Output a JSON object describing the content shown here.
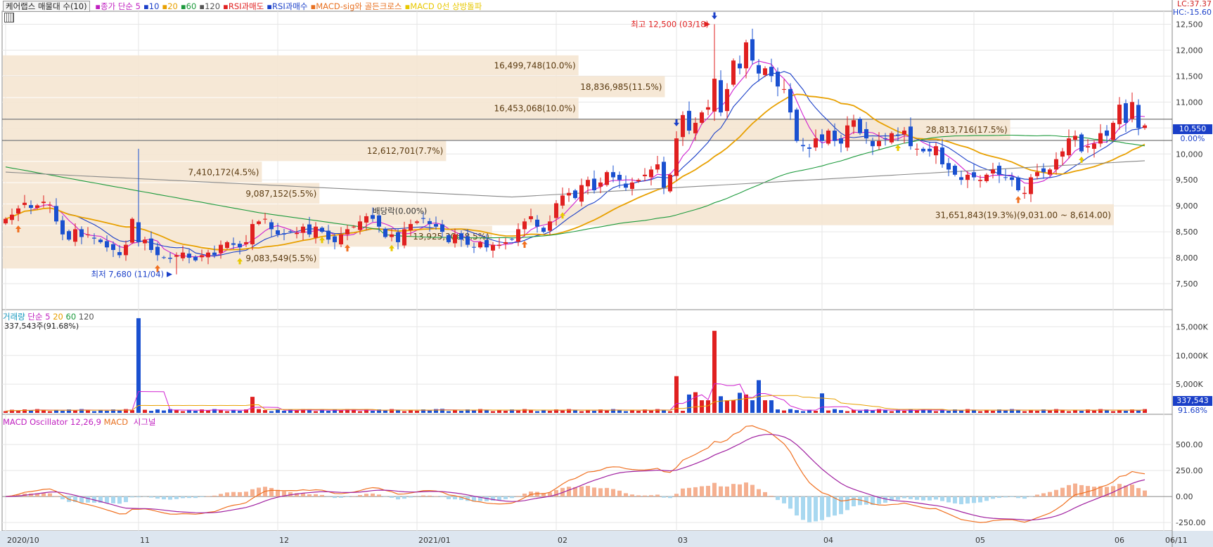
{
  "header": {
    "title": "케어랩스 매물대 수(10)",
    "indicators": [
      {
        "label": "종가 단순 5",
        "color": "#c020c0"
      },
      {
        "label": "10",
        "color": "#1a3fc8"
      },
      {
        "label": "20",
        "color": "#e8a000"
      },
      {
        "label": "60",
        "color": "#1c9a3c"
      },
      {
        "label": "120",
        "color": "#555555"
      },
      {
        "label": "RSI과매도",
        "color": "#e02020"
      },
      {
        "label": "RSI과매수",
        "color": "#1a3fc8"
      },
      {
        "label": "MACD-sig와 골든크로스",
        "color": "#e87020"
      },
      {
        "label": "MACD 0선 상방돌파",
        "color": "#e8c800"
      }
    ],
    "lc_label": "LC:37.37",
    "hc_label": "HC:-15.60"
  },
  "volume_panel": {
    "label_main": "거래량",
    "label_rest": "단순 5",
    "ma_labels": [
      "20",
      "60",
      "120"
    ],
    "sub_label": "337,543주(91.68%)",
    "current_tag": "337,543",
    "current_pct": "91.68%"
  },
  "macd_panel": {
    "label_osc": "MACD Oscillator 12,26,9",
    "label_macd": "MACD",
    "label_sig": "시그널"
  },
  "current_price_tag": "10,550",
  "current_pct_tag": "0.00%",
  "annotations": {
    "high": "최고 12,500 (03/18)",
    "low": "최저 7,680 (11/04)",
    "dividend": "배당락(0.00%)"
  },
  "chart_data": {
    "type": "candlestick",
    "price_axis": {
      "min": 7000,
      "max": 12750,
      "ticks": [
        "7,500",
        "8,000",
        "8,500",
        "9,000",
        "9,500",
        "10,000",
        "10,500",
        "11,000",
        "11,500",
        "12,000",
        "12,500"
      ],
      "tick_values": [
        7500,
        8000,
        8500,
        9000,
        9500,
        10000,
        10500,
        11000,
        11500,
        12000,
        12500
      ]
    },
    "x_labels": [
      {
        "label": "2020/10",
        "index": 0
      },
      {
        "label": "11",
        "index": 21
      },
      {
        "label": "12",
        "index": 43
      },
      {
        "label": "2021/01",
        "index": 65
      },
      {
        "label": "02",
        "index": 87
      },
      {
        "label": "03",
        "index": 106
      },
      {
        "label": "04",
        "index": 129
      },
      {
        "label": "05",
        "index": 153
      },
      {
        "label": "06",
        "index": 175
      },
      {
        "label": "06/11",
        "index": 183
      }
    ],
    "volume_profile": [
      {
        "label": "16,499,748(10.0%)",
        "lo": 11500,
        "hi": 11900
      },
      {
        "label": "18,836,985(11.5%)",
        "lo": 11080,
        "hi": 11500
      },
      {
        "label": "16,453,068(10.0%)",
        "lo": 10670,
        "hi": 11080
      },
      {
        "label": "28,813,716(17.5%)",
        "lo": 10260,
        "hi": 10670
      },
      {
        "label": "12,612,701(7.7%)",
        "lo": 9850,
        "hi": 10260
      },
      {
        "label": "7,410,172(4.5%)",
        "lo": 9440,
        "hi": 9850
      },
      {
        "label": "9,087,152(5.5%)",
        "lo": 9030,
        "hi": 9440
      },
      {
        "label": "31,651,843(19.3%)(9,031.00 ~ 8,614.00)",
        "lo": 8614,
        "hi": 9031
      },
      {
        "label": "13,925,306(8.5%)",
        "lo": 8200,
        "hi": 8614
      },
      {
        "label": "9,083,549(5.5%)",
        "lo": 7780,
        "hi": 8200
      }
    ],
    "closes": [
      8750,
      8830,
      8950,
      9060,
      8960,
      9010,
      9080,
      9020,
      8700,
      8450,
      8350,
      8550,
      8400,
      8450,
      8370,
      8300,
      8200,
      8150,
      8050,
      8250,
      8750,
      8300,
      8350,
      8150,
      8050,
      8000,
      7980,
      8050,
      8100,
      8000,
      7950,
      8050,
      8100,
      8050,
      8250,
      8300,
      8250,
      8200,
      8300,
      8650,
      8700,
      8750,
      8550,
      8450,
      8450,
      8500,
      8480,
      8600,
      8450,
      8600,
      8500,
      8350,
      8300,
      8450,
      8550,
      8600,
      8700,
      8800,
      8750,
      8600,
      8400,
      8450,
      8300,
      8550,
      8650,
      8700,
      8750,
      8650,
      8600,
      8500,
      8300,
      8450,
      8350,
      8250,
      8200,
      8300,
      8200,
      8250,
      8250,
      8300,
      8350,
      8550,
      8700,
      8800,
      8600,
      8500,
      8700,
      9050,
      9200,
      9250,
      9150,
      9400,
      9500,
      9300,
      9450,
      9650,
      9550,
      9500,
      9350,
      9450,
      9500,
      9600,
      9700,
      9800,
      9350,
      9600,
      10300,
      10750,
      10450,
      10600,
      10800,
      10900,
      11450,
      10800,
      11250,
      11800,
      11650,
      12150,
      11800,
      11550,
      11650,
      11500,
      11300,
      11250,
      10800,
      10250,
      10150,
      10100,
      10300,
      10250,
      10450,
      10250,
      10200,
      10550,
      10650,
      10400,
      10300,
      10150,
      10250,
      10300,
      10400,
      10350,
      10450,
      10150,
      10100,
      10050,
      10050,
      10150,
      9800,
      9700,
      9600,
      9500,
      9600,
      9550,
      9500,
      9600,
      9700,
      9600,
      9550,
      9500,
      9300,
      9250,
      9550,
      9650,
      9650,
      9700,
      9900,
      10050,
      10300,
      10350,
      10050,
      10150,
      10200,
      10400,
      10350,
      10600,
      10950,
      10600,
      11000,
      10500,
      10550
    ],
    "series_names": {
      "ma": [
        "5",
        "10",
        "20",
        "60",
        "120"
      ]
    },
    "volume_axis": {
      "ticks": [
        "5,000K",
        "10,000K",
        "15,000K"
      ],
      "tick_values": [
        5000,
        10000,
        15000
      ],
      "max": 17500
    },
    "macd_axis": {
      "ticks": [
        "-250.00",
        "0.00",
        "250.00",
        "500.00"
      ],
      "tick_values": [
        -250,
        0,
        250,
        500
      ],
      "min": -330,
      "max": 790
    }
  }
}
